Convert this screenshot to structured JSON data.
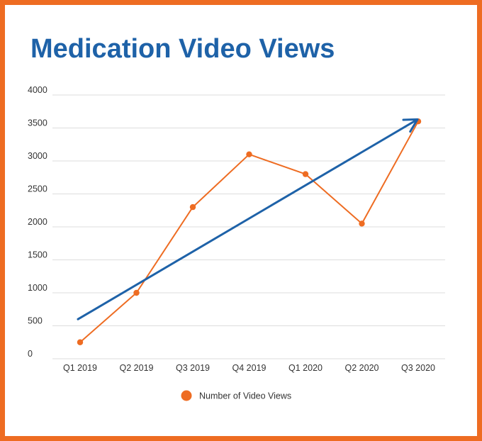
{
  "chart_data": {
    "type": "line",
    "title": "Medication Video Views",
    "xlabel": "",
    "ylabel": "",
    "categories": [
      "Q1 2019",
      "Q2 2019",
      "Q3 2019",
      "Q4 2019",
      "Q1 2020",
      "Q2 2020",
      "Q3 2020"
    ],
    "series": [
      {
        "name": "Number of Video Views",
        "values": [
          250,
          1000,
          2300,
          3100,
          2800,
          2050,
          3600
        ],
        "color": "#ee6c22"
      }
    ],
    "ylim": [
      0,
      4000
    ],
    "yticks": [
      0,
      500,
      1000,
      1500,
      2000,
      2500,
      3000,
      3500,
      4000
    ],
    "grid": true,
    "legend_position": "bottom",
    "annotations": [
      {
        "type": "trend-arrow",
        "from": {
          "category": "Q1 2019",
          "value": 600
        },
        "to": {
          "category": "Q3 2020",
          "value": 3630
        },
        "color": "#1e62a8"
      }
    ]
  },
  "colors": {
    "border": "#ee6c22",
    "title": "#1e62a8",
    "series": "#ee6c22",
    "arrow": "#1e62a8",
    "grid": "#dddddd"
  }
}
